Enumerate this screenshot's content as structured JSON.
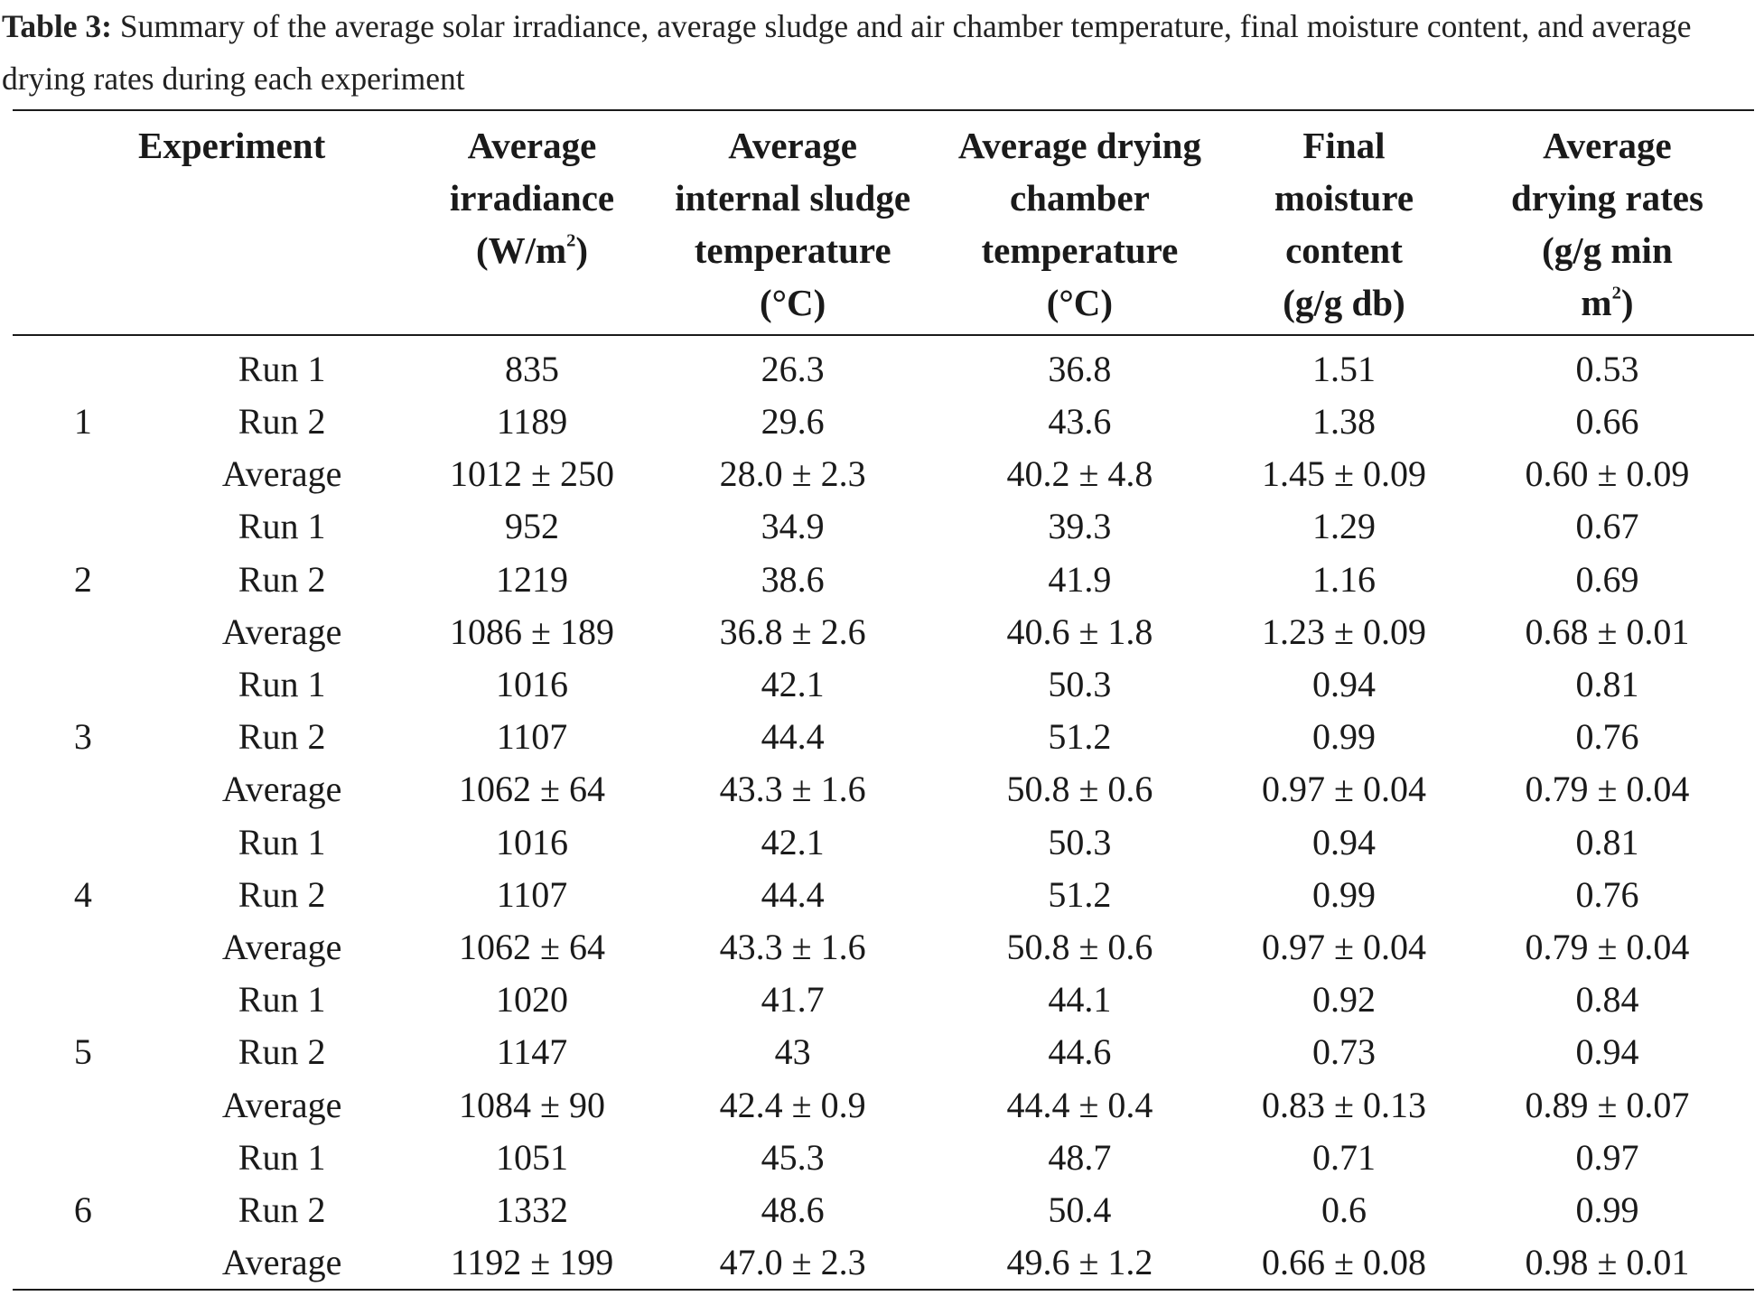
{
  "caption": {
    "label": "Table 3:",
    "text": " Summary of the average solar irradiance, average sludge and air chamber temperature, final moisture content, and average drying rates during each experiment"
  },
  "columns": [
    {
      "line1": "Experiment",
      "line2": "",
      "line3": "",
      "line4": ""
    },
    {
      "line1": "Average",
      "line2": "irradiance",
      "line3": "(W/m",
      "sup": "2",
      "line3_end": ")",
      "line4": ""
    },
    {
      "line1": "Average",
      "line2": "internal sludge",
      "line3": "temperature",
      "line4": "(°C)"
    },
    {
      "line1": "Average drying",
      "line2": "chamber",
      "line3": "temperature",
      "line4": "(°C)"
    },
    {
      "line1": "Final",
      "line2": "moisture",
      "line3": "content",
      "line4": "(g/g db)"
    },
    {
      "line1": "Average",
      "line2": "drying rates",
      "line3": "(g/g min",
      "line4": "m",
      "sup": "2",
      "line4_end": ")"
    }
  ],
  "experiments": [
    {
      "id": "1",
      "rows": [
        [
          "Run 1",
          "835",
          "26.3",
          "36.8",
          "1.51",
          "0.53"
        ],
        [
          "Run 2",
          "1189",
          "29.6",
          "43.6",
          "1.38",
          "0.66"
        ],
        [
          "Average",
          "1012 ± 250",
          "28.0 ± 2.3",
          "40.2 ± 4.8",
          "1.45 ± 0.09",
          "0.60 ± 0.09"
        ]
      ]
    },
    {
      "id": "2",
      "rows": [
        [
          "Run 1",
          "952",
          "34.9",
          "39.3",
          "1.29",
          "0.67"
        ],
        [
          "Run 2",
          "1219",
          "38.6",
          "41.9",
          "1.16",
          "0.69"
        ],
        [
          "Average",
          "1086 ± 189",
          "36.8 ± 2.6",
          "40.6 ± 1.8",
          "1.23 ± 0.09",
          "0.68 ± 0.01"
        ]
      ]
    },
    {
      "id": "3",
      "rows": [
        [
          "Run 1",
          "1016",
          "42.1",
          "50.3",
          "0.94",
          "0.81"
        ],
        [
          "Run 2",
          "1107",
          "44.4",
          "51.2",
          "0.99",
          "0.76"
        ],
        [
          "Average",
          "1062 ± 64",
          "43.3 ± 1.6",
          "50.8 ± 0.6",
          "0.97 ± 0.04",
          "0.79 ± 0.04"
        ]
      ]
    },
    {
      "id": "4",
      "rows": [
        [
          "Run 1",
          "1016",
          "42.1",
          "50.3",
          "0.94",
          "0.81"
        ],
        [
          "Run 2",
          "1107",
          "44.4",
          "51.2",
          "0.99",
          "0.76"
        ],
        [
          "Average",
          "1062 ± 64",
          "43.3 ± 1.6",
          "50.8 ± 0.6",
          "0.97 ± 0.04",
          "0.79 ± 0.04"
        ]
      ]
    },
    {
      "id": "5",
      "rows": [
        [
          "Run 1",
          "1020",
          "41.7",
          "44.1",
          "0.92",
          "0.84"
        ],
        [
          "Run 2",
          "1147",
          "43",
          "44.6",
          "0.73",
          "0.94"
        ],
        [
          "Average",
          "1084 ± 90",
          "42.4 ± 0.9",
          "44.4 ± 0.4",
          "0.83 ± 0.13",
          "0.89 ± 0.07"
        ]
      ]
    },
    {
      "id": "6",
      "rows": [
        [
          "Run 1",
          "1051",
          "45.3",
          "48.7",
          "0.71",
          "0.97"
        ],
        [
          "Run 2",
          "1332",
          "48.6",
          "50.4",
          "0.6",
          "0.99"
        ],
        [
          "Average",
          "1192 ± 199",
          "47.0 ± 2.3",
          "49.6 ± 1.2",
          "0.66 ± 0.08",
          "0.98 ± 0.01"
        ]
      ]
    }
  ]
}
